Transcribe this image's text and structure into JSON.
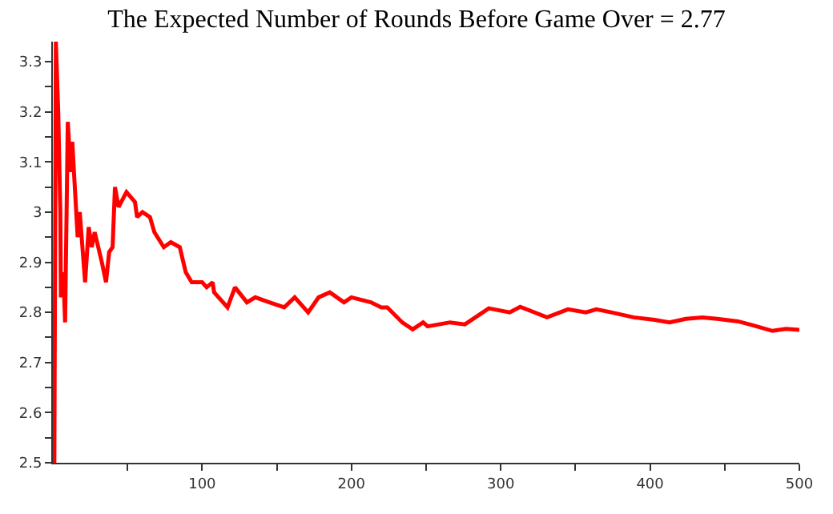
{
  "chart_data": {
    "type": "line",
    "title": "The Expected Number of Rounds Before Game Over = 2.77",
    "x": [
      1,
      2,
      3.6,
      5,
      5.4,
      7,
      8.2,
      10,
      12,
      13,
      16.6,
      18,
      21.6,
      24,
      26,
      28,
      32.8,
      35.6,
      37.7,
      40,
      41.6,
      44,
      49.3,
      55,
      56.4,
      60,
      65,
      68,
      74.3,
      79,
      85,
      89,
      93,
      100,
      103,
      107,
      108,
      117,
      122,
      130,
      135.6,
      145,
      155,
      162,
      171,
      178,
      185.5,
      195,
      200,
      213,
      220,
      224,
      234,
      241,
      248,
      251,
      266,
      276,
      283,
      292,
      306,
      313,
      331,
      345,
      357,
      364,
      374,
      389,
      403,
      413,
      424,
      435,
      445,
      459,
      469,
      482,
      491,
      500
    ],
    "series": [
      {
        "color": "#ff0000",
        "values": [
          2.5,
          3.34,
          3.2,
          3.0,
          2.83,
          2.88,
          2.78,
          3.18,
          3.08,
          3.14,
          2.95,
          3.0,
          2.86,
          2.97,
          2.93,
          2.96,
          2.9,
          2.86,
          2.92,
          2.93,
          3.05,
          3.01,
          3.04,
          3.02,
          2.99,
          3.0,
          2.99,
          2.96,
          2.93,
          2.94,
          2.93,
          2.88,
          2.86,
          2.86,
          2.85,
          2.86,
          2.84,
          2.81,
          2.85,
          2.82,
          2.83,
          2.82,
          2.81,
          2.83,
          2.8,
          2.83,
          2.84,
          2.82,
          2.83,
          2.82,
          2.81,
          2.81,
          2.78,
          2.766,
          2.78,
          2.772,
          2.78,
          2.776,
          2.79,
          2.808,
          2.8,
          2.811,
          2.79,
          2.806,
          2.8,
          2.806,
          2.8,
          2.79,
          2.785,
          2.78,
          2.787,
          2.79,
          2.787,
          2.782,
          2.774,
          2.763,
          2.767,
          2.765
        ]
      }
    ],
    "xlim": [
      0,
      500
    ],
    "ylim": [
      2.5,
      3.34
    ],
    "xticks": [
      {
        "value": 50,
        "label": null
      },
      100,
      {
        "value": 150,
        "label": null
      },
      200,
      {
        "value": 250,
        "label": null
      },
      300,
      {
        "value": 350,
        "label": null
      },
      400,
      {
        "value": 450,
        "label": null
      },
      500
    ],
    "yticks": [
      2.5,
      {
        "value": 2.55,
        "label": null
      },
      2.6,
      {
        "value": 2.65,
        "label": null
      },
      2.7,
      {
        "value": 2.75,
        "label": null
      },
      2.8,
      {
        "value": 2.85,
        "label": null
      },
      2.9,
      {
        "value": 2.95,
        "label": null
      },
      3,
      {
        "value": 3.05,
        "label": null
      },
      3.1,
      {
        "value": 3.15,
        "label": null
      },
      3.2,
      {
        "value": 3.25,
        "label": null
      },
      3.3
    ],
    "marker": "none",
    "line_style": "solid"
  }
}
